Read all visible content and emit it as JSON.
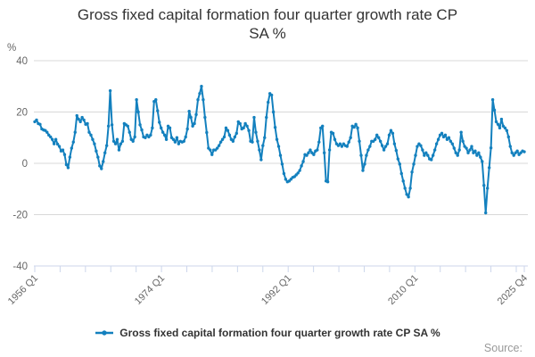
{
  "title": {
    "line1": "Gross fixed capital formation four quarter growth rate CP",
    "line2": "SA %"
  },
  "y_axis": {
    "unit_label": "%",
    "tick_labels": [
      "40",
      "20",
      "0",
      "-20",
      "-40"
    ],
    "tick_values": [
      40,
      20,
      0,
      -20,
      -40
    ]
  },
  "x_axis": {
    "labels": [
      "1956 Q1",
      "1974 Q1",
      "1992 Q1",
      "2010 Q1",
      "2025 Q4"
    ]
  },
  "legend": {
    "label": "Gross fixed capital formation four quarter growth rate CP SA %"
  },
  "source_label": "Source:",
  "colors": {
    "series": "#1380be",
    "grid": "#d8d8d8",
    "axis": "#ccd6eb",
    "tick_text": "#666666",
    "title_text": "#333333"
  },
  "chart_data": {
    "type": "line",
    "title": "Gross fixed capital formation four quarter growth rate CP SA %",
    "frequency": "quarterly",
    "x_start": "1956 Q1",
    "x_end": "2025 Q4",
    "ylabel": "%",
    "ylim": [
      -40,
      40
    ],
    "grid": true,
    "legend_position": "bottom",
    "markers": true,
    "series": [
      {
        "name": "Gross fixed capital formation four quarter growth rate CP SA %",
        "values": [
          16.2,
          16.9,
          15.5,
          15.2,
          13.4,
          13.0,
          12.8,
          12.1,
          11.0,
          10.3,
          9.3,
          7.6,
          9.3,
          7.5,
          6.6,
          4.8,
          5.2,
          3.4,
          -0.5,
          -1.7,
          2.4,
          5.9,
          8.3,
          12.1,
          18.6,
          17.2,
          16.2,
          17.9,
          16.9,
          15.2,
          15.5,
          12.1,
          11.0,
          9.3,
          7.6,
          4.8,
          2.4,
          -1.0,
          -2.1,
          0.7,
          4.1,
          6.9,
          14.5,
          28.3,
          15.0,
          8.6,
          7.6,
          9.3,
          5.2,
          7.6,
          8.6,
          15.5,
          15.0,
          14.5,
          12.1,
          9.3,
          8.6,
          10.3,
          24.8,
          20.0,
          15.0,
          13.0,
          10.3,
          10.0,
          11.0,
          10.3,
          11.0,
          13.8,
          24.1,
          24.8,
          20.5,
          16.0,
          13.8,
          12.1,
          11.0,
          9.3,
          14.5,
          13.8,
          10.0,
          9.3,
          8.3,
          10.0,
          7.6,
          8.6,
          8.3,
          8.6,
          10.3,
          13.4,
          20.3,
          17.9,
          14.5,
          15.5,
          19.0,
          24.8,
          27.2,
          30.0,
          24.8,
          17.9,
          12.0,
          5.9,
          5.2,
          3.4,
          5.2,
          5.2,
          5.9,
          6.9,
          8.3,
          9.3,
          10.3,
          13.8,
          12.8,
          11.0,
          9.3,
          8.6,
          10.3,
          11.7,
          16.2,
          15.5,
          13.4,
          13.8,
          15.5,
          14.5,
          12.8,
          8.6,
          8.3,
          17.9,
          12.1,
          8.6,
          5.2,
          1.4,
          6.9,
          10.0,
          17.9,
          23.8,
          27.2,
          26.6,
          20.0,
          14.0,
          9.3,
          6.6,
          3.1,
          -0.3,
          -4.0,
          -6.2,
          -7.2,
          -6.9,
          -6.2,
          -5.5,
          -5.2,
          -4.5,
          -3.8,
          -2.8,
          -1.0,
          0.7,
          3.4,
          3.1,
          4.1,
          5.2,
          4.1,
          3.4,
          4.8,
          5.2,
          8.3,
          13.8,
          14.5,
          4.1,
          -6.9,
          -7.2,
          5.2,
          12.1,
          11.7,
          9.3,
          7.6,
          6.9,
          7.6,
          6.6,
          7.6,
          6.9,
          6.6,
          8.3,
          10.0,
          14.5,
          14.1,
          15.2,
          13.8,
          8.6,
          3.1,
          -2.8,
          -0.3,
          3.1,
          5.2,
          6.6,
          8.6,
          8.6,
          9.3,
          11.0,
          10.0,
          8.6,
          6.9,
          5.2,
          6.6,
          7.6,
          11.0,
          12.8,
          11.7,
          7.6,
          5.0,
          1.7,
          -0.3,
          -4.0,
          -6.9,
          -9.7,
          -12.1,
          -13.1,
          -9.7,
          -3.4,
          -0.3,
          3.1,
          6.6,
          7.6,
          6.9,
          5.2,
          3.1,
          4.1,
          3.1,
          1.7,
          1.4,
          3.1,
          5.2,
          7.6,
          9.3,
          11.0,
          11.7,
          10.3,
          11.0,
          9.3,
          10.0,
          8.6,
          7.6,
          5.9,
          4.1,
          3.1,
          5.2,
          12.1,
          8.6,
          6.6,
          5.9,
          4.1,
          5.2,
          6.6,
          4.1,
          4.8,
          3.1,
          4.1,
          2.4,
          0.7,
          -8.6,
          -19.3,
          -9.7,
          -1.7,
          6.0,
          24.8,
          20.7,
          16.2,
          15.2,
          13.8,
          17.2,
          14.5,
          13.8,
          12.8,
          10.3,
          6.6,
          4.1,
          3.1,
          4.1,
          4.8,
          3.4,
          4.1,
          4.8,
          4.5
        ]
      }
    ]
  }
}
